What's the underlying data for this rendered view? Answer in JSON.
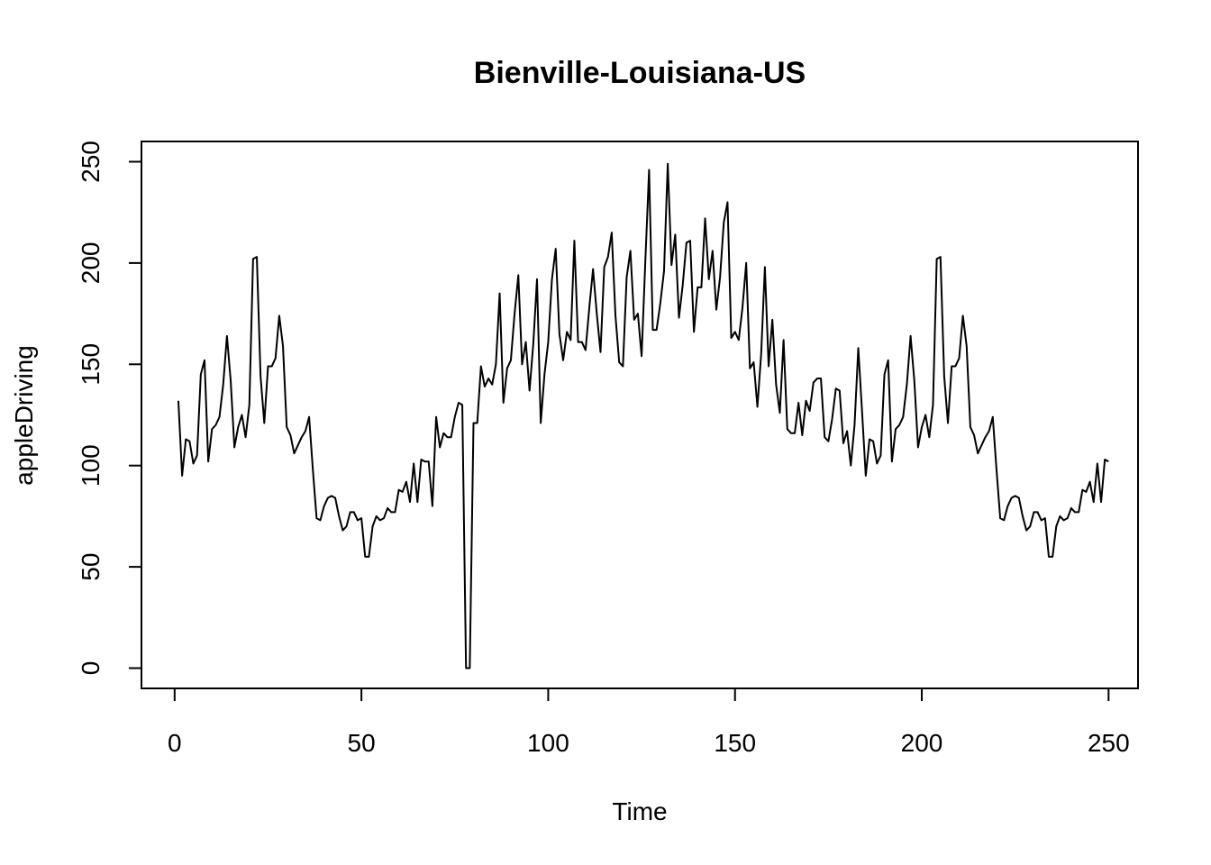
{
  "chart_data": {
    "type": "line",
    "title": "Bienville-Louisiana-US",
    "xlabel": "Time",
    "ylabel": "appleDriving",
    "xlim": [
      -8.88,
      257.88
    ],
    "ylim": [
      -10,
      260
    ],
    "x_ticks": [
      0,
      50,
      100,
      150,
      200,
      250
    ],
    "y_ticks": [
      0,
      50,
      100,
      150,
      200,
      250
    ],
    "grid": false,
    "legend": "none",
    "line_color": "#000000",
    "x_start": 1,
    "series": [
      {
        "values": [
          132,
          95,
          113,
          112,
          101,
          105,
          145,
          152,
          102,
          118,
          120,
          124,
          140,
          164,
          142,
          109,
          119,
          125,
          114,
          130,
          202,
          203,
          144,
          121,
          149,
          149,
          153,
          174,
          159,
          119,
          115,
          106,
          110,
          114,
          117,
          124,
          98,
          74,
          73,
          80,
          84,
          85,
          84,
          75,
          68,
          70,
          77,
          77,
          73,
          74,
          55,
          55,
          70,
          75,
          73,
          74,
          79,
          77,
          77,
          88,
          87,
          92,
          82,
          101,
          82,
          103,
          102,
          102,
          80,
          124,
          109,
          116,
          114,
          114,
          124,
          131,
          130,
          0,
          0,
          121,
          121,
          149,
          139,
          143,
          140,
          150,
          185,
          131,
          148,
          152,
          175,
          194,
          150,
          161,
          137,
          160,
          192,
          121,
          145,
          161,
          192,
          207,
          165,
          152,
          166,
          162,
          211,
          161,
          161,
          157,
          178,
          197,
          175,
          156,
          198,
          203,
          215,
          174,
          151,
          149,
          193,
          206,
          172,
          175,
          154,
          201,
          246,
          167,
          167,
          180,
          196,
          249,
          199,
          214,
          173,
          189,
          210,
          211,
          166,
          188,
          188,
          222,
          192,
          206,
          177,
          193,
          220,
          230,
          163,
          166,
          162,
          178,
          200,
          148,
          151,
          129,
          155,
          198,
          149,
          172,
          140,
          126,
          162,
          118,
          116,
          116,
          131,
          115,
          132,
          127,
          141,
          143,
          143,
          114,
          112,
          123,
          138,
          137,
          111,
          117,
          100,
          120,
          158,
          127,
          95,
          113,
          112,
          101,
          105,
          145,
          152,
          102,
          118,
          120,
          124,
          140,
          164,
          142,
          109,
          119,
          125,
          114,
          130,
          202,
          203,
          144,
          121,
          149,
          149,
          153,
          174,
          159,
          119,
          115,
          106,
          110,
          114,
          117,
          124,
          98,
          74,
          73,
          80,
          84,
          85,
          84,
          75,
          68,
          70,
          77,
          77,
          73,
          74,
          55,
          55,
          70,
          75,
          73,
          74,
          79,
          77,
          77,
          88,
          87,
          92,
          82,
          101,
          82,
          103,
          102
        ]
      }
    ]
  }
}
